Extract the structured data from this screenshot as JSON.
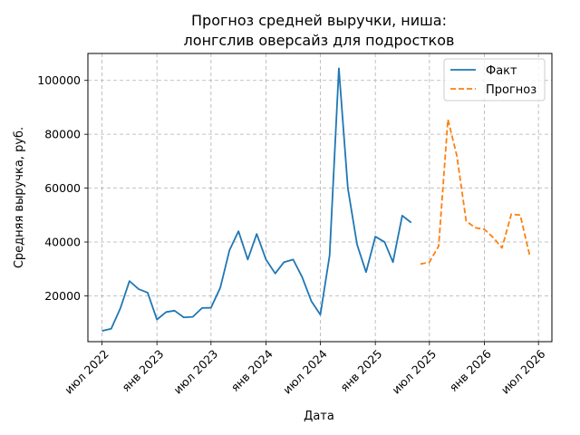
{
  "chart_data": {
    "type": "line",
    "title_lines": [
      "Прогноз средней выручки, ниша:",
      "лонгслив оверсайз для подростков"
    ],
    "xlabel": "Дата",
    "ylabel": "Средняя выручка, руб.",
    "ylim": [
      3000,
      110000
    ],
    "xlim": [
      "2022-05-15",
      "2026-08-15"
    ],
    "grid": true,
    "legend_position": "top-right",
    "y_ticks": [
      20000,
      40000,
      60000,
      80000,
      100000
    ],
    "x_ticks": [
      {
        "date": "2022-07-01",
        "label": "июл 2022"
      },
      {
        "date": "2023-01-01",
        "label": "янв 2023"
      },
      {
        "date": "2023-07-01",
        "label": "июл 2023"
      },
      {
        "date": "2024-01-01",
        "label": "янв 2024"
      },
      {
        "date": "2024-07-01",
        "label": "июл 2024"
      },
      {
        "date": "2025-01-01",
        "label": "янв 2025"
      },
      {
        "date": "2025-07-01",
        "label": "июл 2025"
      },
      {
        "date": "2026-01-01",
        "label": "янв 2026"
      },
      {
        "date": "2026-07-01",
        "label": "июл 2026"
      }
    ],
    "series": [
      {
        "name": "Факт",
        "color": "#1f77b4",
        "style": "solid",
        "x": [
          "2022-07-01",
          "2022-08-01",
          "2022-09-01",
          "2022-10-01",
          "2022-11-01",
          "2022-12-01",
          "2023-01-01",
          "2023-02-01",
          "2023-03-01",
          "2023-04-01",
          "2023-05-01",
          "2023-06-01",
          "2023-07-01",
          "2023-08-01",
          "2023-09-01",
          "2023-10-01",
          "2023-11-01",
          "2023-12-01",
          "2024-01-01",
          "2024-02-01",
          "2024-03-01",
          "2024-04-01",
          "2024-05-01",
          "2024-06-01",
          "2024-07-01",
          "2024-08-01",
          "2024-09-01",
          "2024-10-01",
          "2024-11-01",
          "2024-12-01",
          "2025-01-01",
          "2025-02-01",
          "2025-03-01",
          "2025-04-01",
          "2025-05-01"
        ],
        "values": [
          7000,
          7800,
          15500,
          25500,
          22500,
          21200,
          11200,
          14000,
          14500,
          12000,
          12200,
          15500,
          15600,
          23000,
          37000,
          44000,
          33500,
          43000,
          33500,
          28300,
          32500,
          33500,
          27000,
          18000,
          13000,
          35000,
          104500,
          60000,
          39000,
          28800,
          42000,
          40000,
          32500,
          49800,
          47200
        ]
      },
      {
        "name": "Прогноз",
        "color": "#ff7f0e",
        "style": "dashed",
        "x": [
          "2025-06-01",
          "2025-07-01",
          "2025-08-01",
          "2025-09-01",
          "2025-10-01",
          "2025-11-01",
          "2025-12-01",
          "2026-01-01",
          "2026-02-01",
          "2026-03-01",
          "2026-04-01",
          "2026-05-01",
          "2026-06-01"
        ],
        "values": [
          31800,
          32500,
          38500,
          85500,
          72000,
          47800,
          45300,
          44700,
          41500,
          37800,
          50300,
          50000,
          35300
        ]
      }
    ]
  }
}
